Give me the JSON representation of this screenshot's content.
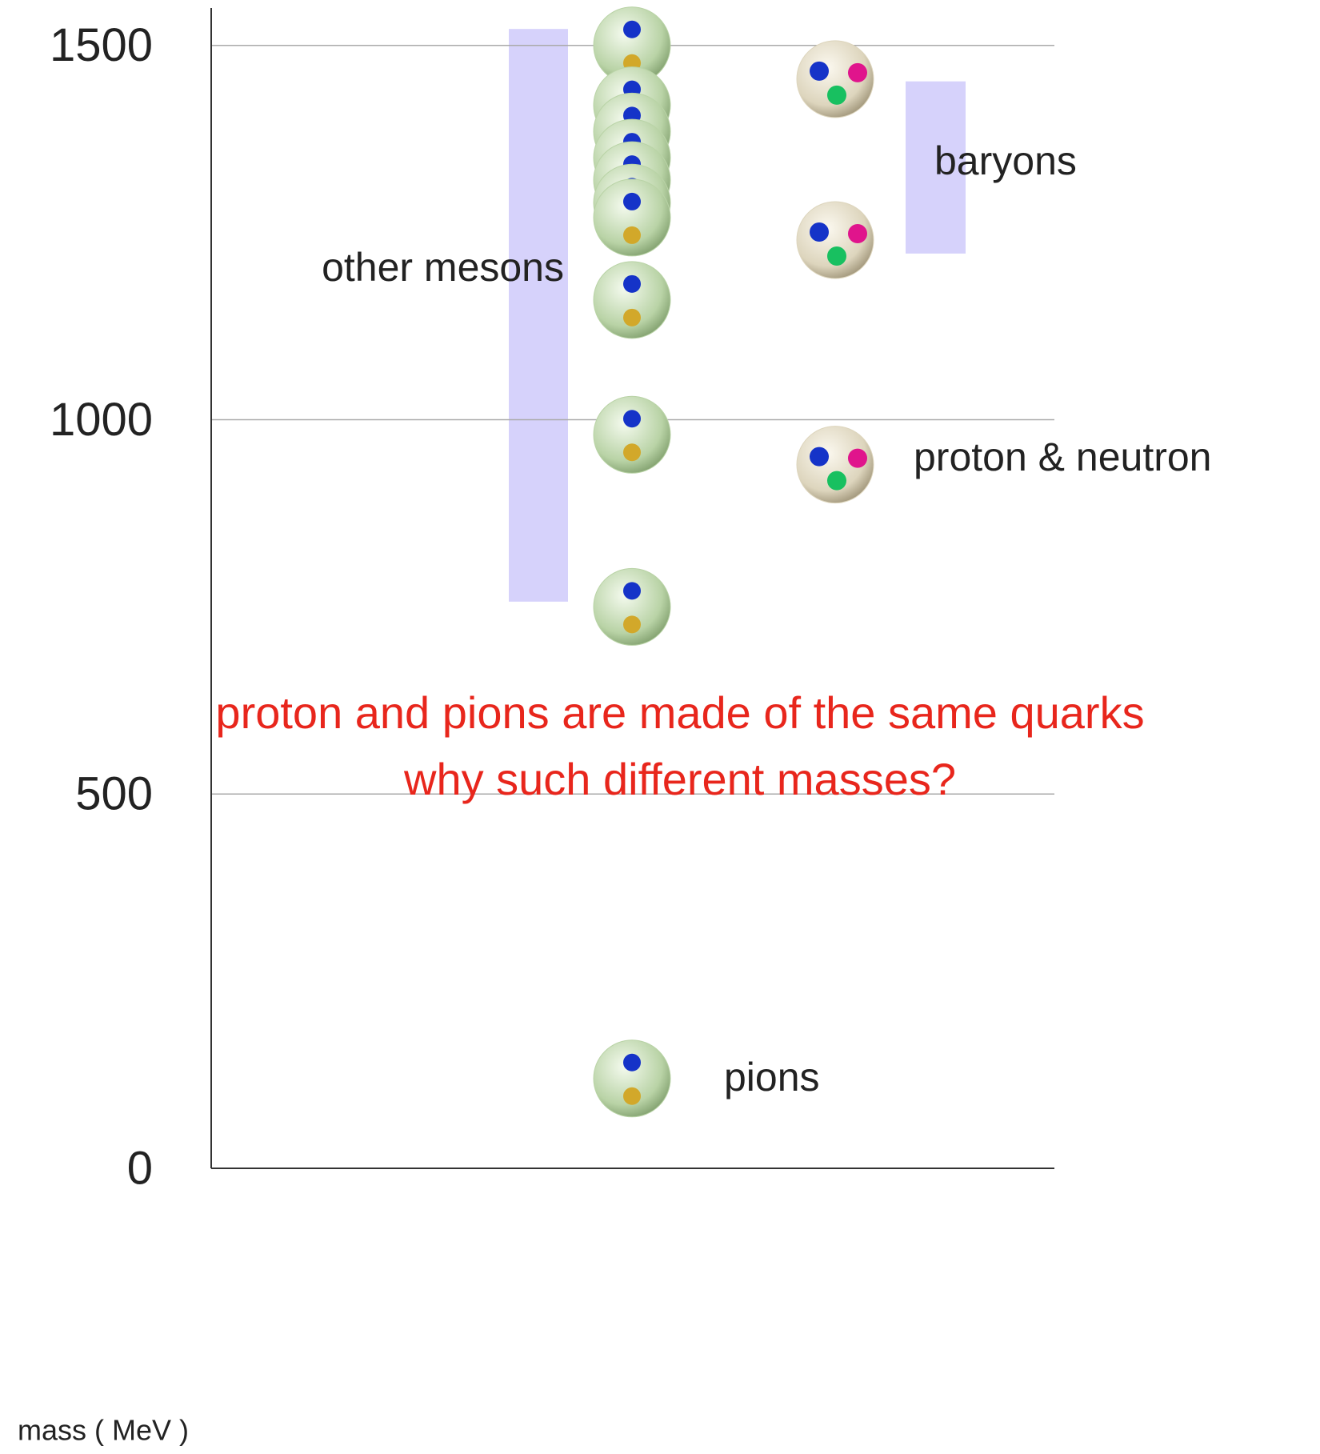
{
  "chart_data": {
    "type": "scatter",
    "y_label": "mass ( MeV )",
    "ylim": [
      0,
      1550
    ],
    "yticks": [
      0,
      500,
      1000,
      1500
    ],
    "grid": true,
    "series": [
      {
        "color": "#b9d3a6",
        "values": [
          1500,
          1420,
          1385,
          1350,
          1320,
          1290,
          1270,
          1160,
          980,
          750,
          120
        ]
      },
      {
        "color": "#ddd5bd",
        "values": [
          1455,
          1240,
          940
        ]
      }
    ],
    "bands": [
      {
        "label": "other mesons",
        "range": [
          757,
          1522
        ],
        "color": "#d6d2fb"
      },
      {
        "label": "baryons",
        "range": [
          1222,
          1452
        ],
        "color": "#d6d2fb"
      }
    ],
    "annotations": [
      "proton & neutron",
      "pions"
    ],
    "question": [
      "proton and pions are made of the same quarks",
      "why such different masses?"
    ],
    "question_color": "#e8261c"
  }
}
